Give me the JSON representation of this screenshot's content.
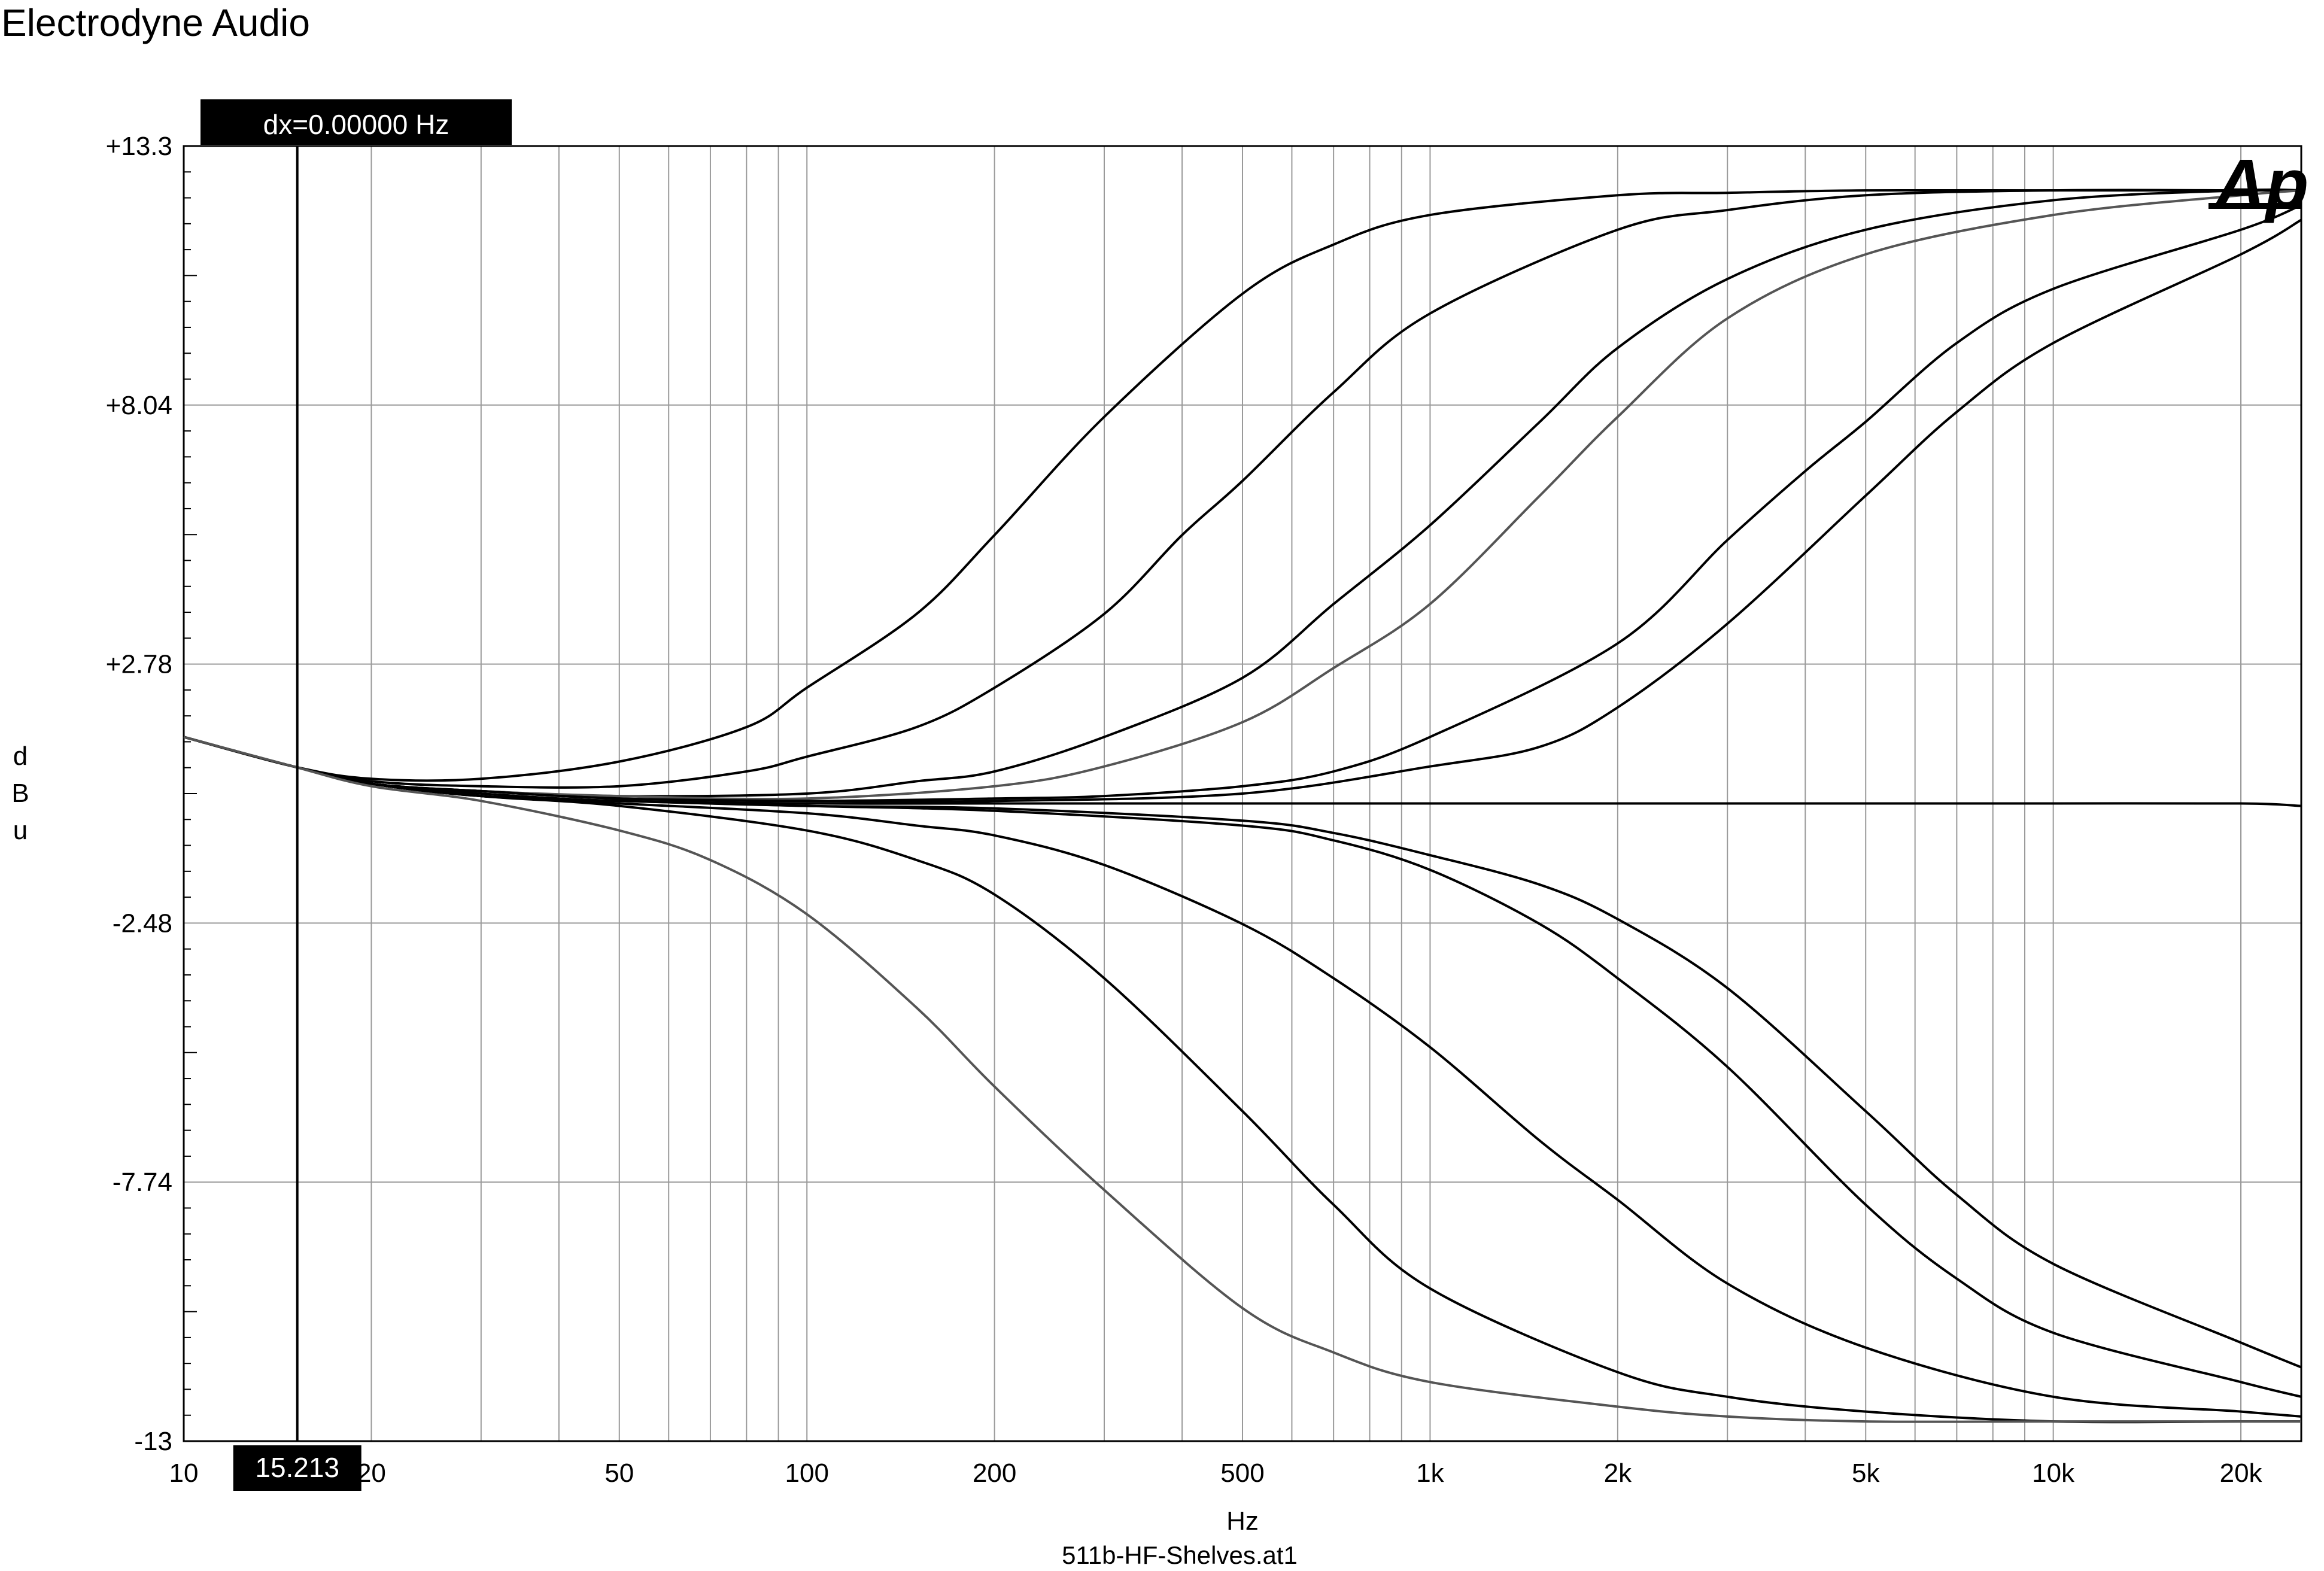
{
  "header": {
    "title": "Electrodyne Audio"
  },
  "cursor": {
    "dx_readout": "dx=0.00000 Hz",
    "x_readout": "15.213",
    "x_value": 15.213
  },
  "logo": {
    "text": "Ap"
  },
  "footer": {
    "filename": "511b-HF-Shelves.at1"
  },
  "chart_data": {
    "type": "line",
    "xlabel": "Hz",
    "ylabel": "dBu",
    "xscale": "log",
    "xlim": [
      10,
      25000
    ],
    "ylim": [
      -13,
      13.3
    ],
    "grid": true,
    "y_ticks": [
      {
        "value": 13.3,
        "label": "+13.3"
      },
      {
        "value": 8.04,
        "label": "+8.04"
      },
      {
        "value": 2.78,
        "label": "+2.78"
      },
      {
        "value": -2.48,
        "label": "-2.48"
      },
      {
        "value": -7.74,
        "label": "-7.74"
      },
      {
        "value": -13,
        "label": "-13"
      }
    ],
    "x_ticks": [
      {
        "value": 10,
        "label": "10"
      },
      {
        "value": 20,
        "label": "20"
      },
      {
        "value": 50,
        "label": "50"
      },
      {
        "value": 100,
        "label": "100"
      },
      {
        "value": 200,
        "label": "200"
      },
      {
        "value": 500,
        "label": "500"
      },
      {
        "value": 1000,
        "label": "1k"
      },
      {
        "value": 2000,
        "label": "2k"
      },
      {
        "value": 5000,
        "label": "5k"
      },
      {
        "value": 10000,
        "label": "10k"
      },
      {
        "value": 20000,
        "label": "20k"
      }
    ],
    "series": [
      {
        "color": "#000000",
        "x": [
          10,
          15,
          20,
          30,
          50,
          80,
          100,
          150,
          200,
          300,
          500,
          700,
          1000,
          2000,
          3000,
          5000,
          10000,
          20000,
          25000
        ],
        "y": [
          1.3,
          0.7,
          0.45,
          0.45,
          0.8,
          1.5,
          2.3,
          3.8,
          5.4,
          7.8,
          10.3,
          11.3,
          11.9,
          12.3,
          12.35,
          12.4,
          12.4,
          12.4,
          12.4
        ]
      },
      {
        "color": "#000000",
        "x": [
          10,
          15,
          20,
          30,
          50,
          80,
          100,
          150,
          200,
          300,
          400,
          500,
          700,
          1000,
          2000,
          3000,
          5000,
          10000,
          20000,
          25000
        ],
        "y": [
          1.3,
          0.7,
          0.4,
          0.3,
          0.3,
          0.6,
          0.9,
          1.5,
          2.3,
          3.8,
          5.4,
          6.5,
          8.3,
          9.9,
          11.6,
          12.0,
          12.3,
          12.4,
          12.4,
          12.4
        ]
      },
      {
        "color": "#000000",
        "x": [
          10,
          15,
          20,
          30,
          50,
          100,
          150,
          200,
          300,
          500,
          700,
          1000,
          1500,
          2000,
          3000,
          5000,
          10000,
          20000,
          25000
        ],
        "y": [
          1.3,
          0.7,
          0.35,
          0.2,
          0.1,
          0.15,
          0.4,
          0.6,
          1.3,
          2.5,
          4.0,
          5.6,
          7.7,
          9.2,
          10.6,
          11.6,
          12.2,
          12.4,
          12.4
        ]
      },
      {
        "color": "#555555",
        "x": [
          10,
          15,
          20,
          30,
          50,
          100,
          200,
          300,
          500,
          700,
          1000,
          1500,
          2000,
          3000,
          5000,
          10000,
          20000,
          25000
        ],
        "y": [
          1.3,
          0.7,
          0.35,
          0.2,
          0.1,
          0.05,
          0.3,
          0.7,
          1.6,
          2.7,
          4.0,
          6.2,
          7.8,
          9.8,
          11.1,
          11.9,
          12.3,
          12.4
        ]
      },
      {
        "color": "#000000",
        "x": [
          10,
          15,
          20,
          30,
          50,
          100,
          200,
          300,
          500,
          700,
          1000,
          2000,
          3000,
          4000,
          5000,
          7000,
          10000,
          20000,
          25000
        ],
        "y": [
          1.3,
          0.7,
          0.35,
          0.2,
          0.05,
          0.0,
          0.05,
          0.1,
          0.3,
          0.6,
          1.3,
          3.2,
          5.3,
          6.7,
          7.7,
          9.3,
          10.4,
          11.6,
          12.1
        ]
      },
      {
        "color": "#000000",
        "x": [
          10,
          15,
          20,
          30,
          50,
          100,
          200,
          500,
          1000,
          1500,
          2000,
          3000,
          5000,
          7000,
          10000,
          20000,
          25000
        ],
        "y": [
          1.3,
          0.7,
          0.35,
          0.2,
          0.05,
          0.0,
          0.0,
          0.15,
          0.7,
          1.1,
          1.9,
          3.6,
          6.2,
          7.9,
          9.3,
          11.1,
          11.8
        ]
      },
      {
        "color": "#000000",
        "x": [
          10,
          15,
          20,
          30,
          50,
          100,
          200,
          500,
          1000,
          2000,
          5000,
          10000,
          20000,
          25000
        ],
        "y": [
          1.3,
          0.7,
          0.35,
          0.15,
          0.0,
          -0.05,
          -0.05,
          -0.05,
          -0.05,
          -0.05,
          -0.05,
          -0.05,
          -0.05,
          -0.1
        ]
      },
      {
        "color": "#000000",
        "x": [
          10,
          15,
          20,
          30,
          50,
          100,
          200,
          500,
          700,
          1000,
          1500,
          2000,
          3000,
          5000,
          7000,
          10000,
          20000,
          25000
        ],
        "y": [
          1.3,
          0.7,
          0.35,
          0.1,
          0.0,
          -0.1,
          -0.15,
          -0.4,
          -0.65,
          -1.1,
          -1.7,
          -2.4,
          -3.8,
          -6.3,
          -8.0,
          -9.4,
          -11.0,
          -11.5
        ]
      },
      {
        "color": "#000000",
        "x": [
          10,
          15,
          20,
          30,
          50,
          100,
          200,
          500,
          700,
          1000,
          1500,
          2000,
          3000,
          5000,
          7000,
          10000,
          20000,
          25000
        ],
        "y": [
          1.3,
          0.7,
          0.35,
          0.1,
          0.0,
          -0.1,
          -0.2,
          -0.5,
          -0.8,
          -1.4,
          -2.5,
          -3.6,
          -5.4,
          -8.2,
          -9.7,
          -10.8,
          -11.8,
          -12.1
        ]
      },
      {
        "color": "#000000",
        "x": [
          10,
          15,
          20,
          30,
          50,
          100,
          150,
          200,
          300,
          500,
          700,
          1000,
          1500,
          2000,
          3000,
          5000,
          10000,
          20000,
          25000
        ],
        "y": [
          1.3,
          0.7,
          0.35,
          0.1,
          -0.05,
          -0.25,
          -0.5,
          -0.7,
          -1.3,
          -2.5,
          -3.6,
          -5.0,
          -6.9,
          -8.1,
          -9.8,
          -11.1,
          -12.1,
          -12.4,
          -12.5
        ]
      },
      {
        "color": "#000000",
        "x": [
          10,
          15,
          20,
          30,
          50,
          100,
          150,
          200,
          300,
          500,
          700,
          1000,
          2000,
          3000,
          5000,
          10000,
          20000,
          25000
        ],
        "y": [
          1.3,
          0.7,
          0.35,
          0.1,
          -0.1,
          -0.6,
          -1.2,
          -1.9,
          -3.6,
          -6.3,
          -8.2,
          -9.9,
          -11.6,
          -12.1,
          -12.4,
          -12.6,
          -12.6,
          -12.6
        ]
      },
      {
        "color": "#555555",
        "x": [
          10,
          15,
          20,
          30,
          50,
          70,
          100,
          150,
          200,
          300,
          500,
          700,
          1000,
          2000,
          3000,
          5000,
          10000,
          20000,
          25000
        ],
        "y": [
          1.3,
          0.7,
          0.3,
          0.0,
          -0.6,
          -1.2,
          -2.3,
          -4.2,
          -5.8,
          -7.9,
          -10.3,
          -11.2,
          -11.8,
          -12.3,
          -12.5,
          -12.6,
          -12.6,
          -12.6,
          -12.6
        ]
      }
    ]
  }
}
